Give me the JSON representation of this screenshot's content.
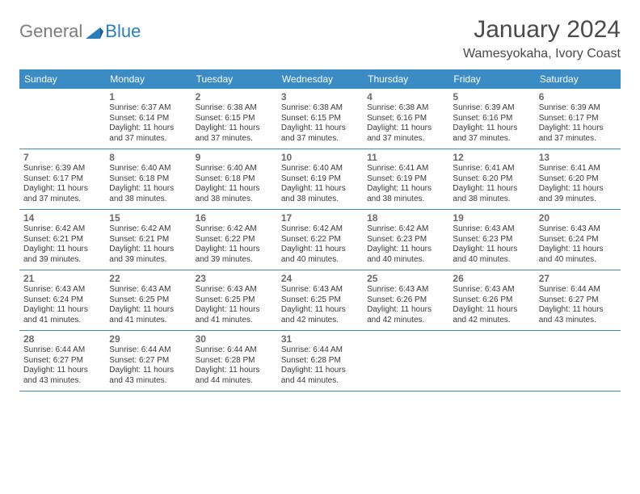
{
  "logo": {
    "text_general": "General",
    "text_blue": "Blue",
    "general_color": "#7c7c7c",
    "blue_color": "#2a7fba"
  },
  "title": "January 2024",
  "location": "Wamesyokaha, Ivory Coast",
  "colors": {
    "header_bg": "#3b8bc4",
    "header_text": "#ffffff",
    "border": "#3b8bc4",
    "daynum": "#6a6a6a",
    "info": "#3a3a3a",
    "title": "#4a4a4a"
  },
  "day_names": [
    "Sunday",
    "Monday",
    "Tuesday",
    "Wednesday",
    "Thursday",
    "Friday",
    "Saturday"
  ],
  "weeks": [
    [
      null,
      {
        "day": "1",
        "sunrise": "Sunrise: 6:37 AM",
        "sunset": "Sunset: 6:14 PM",
        "daylight": "Daylight: 11 hours and 37 minutes."
      },
      {
        "day": "2",
        "sunrise": "Sunrise: 6:38 AM",
        "sunset": "Sunset: 6:15 PM",
        "daylight": "Daylight: 11 hours and 37 minutes."
      },
      {
        "day": "3",
        "sunrise": "Sunrise: 6:38 AM",
        "sunset": "Sunset: 6:15 PM",
        "daylight": "Daylight: 11 hours and 37 minutes."
      },
      {
        "day": "4",
        "sunrise": "Sunrise: 6:38 AM",
        "sunset": "Sunset: 6:16 PM",
        "daylight": "Daylight: 11 hours and 37 minutes."
      },
      {
        "day": "5",
        "sunrise": "Sunrise: 6:39 AM",
        "sunset": "Sunset: 6:16 PM",
        "daylight": "Daylight: 11 hours and 37 minutes."
      },
      {
        "day": "6",
        "sunrise": "Sunrise: 6:39 AM",
        "sunset": "Sunset: 6:17 PM",
        "daylight": "Daylight: 11 hours and 37 minutes."
      }
    ],
    [
      {
        "day": "7",
        "sunrise": "Sunrise: 6:39 AM",
        "sunset": "Sunset: 6:17 PM",
        "daylight": "Daylight: 11 hours and 37 minutes."
      },
      {
        "day": "8",
        "sunrise": "Sunrise: 6:40 AM",
        "sunset": "Sunset: 6:18 PM",
        "daylight": "Daylight: 11 hours and 38 minutes."
      },
      {
        "day": "9",
        "sunrise": "Sunrise: 6:40 AM",
        "sunset": "Sunset: 6:18 PM",
        "daylight": "Daylight: 11 hours and 38 minutes."
      },
      {
        "day": "10",
        "sunrise": "Sunrise: 6:40 AM",
        "sunset": "Sunset: 6:19 PM",
        "daylight": "Daylight: 11 hours and 38 minutes."
      },
      {
        "day": "11",
        "sunrise": "Sunrise: 6:41 AM",
        "sunset": "Sunset: 6:19 PM",
        "daylight": "Daylight: 11 hours and 38 minutes."
      },
      {
        "day": "12",
        "sunrise": "Sunrise: 6:41 AM",
        "sunset": "Sunset: 6:20 PM",
        "daylight": "Daylight: 11 hours and 38 minutes."
      },
      {
        "day": "13",
        "sunrise": "Sunrise: 6:41 AM",
        "sunset": "Sunset: 6:20 PM",
        "daylight": "Daylight: 11 hours and 39 minutes."
      }
    ],
    [
      {
        "day": "14",
        "sunrise": "Sunrise: 6:42 AM",
        "sunset": "Sunset: 6:21 PM",
        "daylight": "Daylight: 11 hours and 39 minutes."
      },
      {
        "day": "15",
        "sunrise": "Sunrise: 6:42 AM",
        "sunset": "Sunset: 6:21 PM",
        "daylight": "Daylight: 11 hours and 39 minutes."
      },
      {
        "day": "16",
        "sunrise": "Sunrise: 6:42 AM",
        "sunset": "Sunset: 6:22 PM",
        "daylight": "Daylight: 11 hours and 39 minutes."
      },
      {
        "day": "17",
        "sunrise": "Sunrise: 6:42 AM",
        "sunset": "Sunset: 6:22 PM",
        "daylight": "Daylight: 11 hours and 40 minutes."
      },
      {
        "day": "18",
        "sunrise": "Sunrise: 6:42 AM",
        "sunset": "Sunset: 6:23 PM",
        "daylight": "Daylight: 11 hours and 40 minutes."
      },
      {
        "day": "19",
        "sunrise": "Sunrise: 6:43 AM",
        "sunset": "Sunset: 6:23 PM",
        "daylight": "Daylight: 11 hours and 40 minutes."
      },
      {
        "day": "20",
        "sunrise": "Sunrise: 6:43 AM",
        "sunset": "Sunset: 6:24 PM",
        "daylight": "Daylight: 11 hours and 40 minutes."
      }
    ],
    [
      {
        "day": "21",
        "sunrise": "Sunrise: 6:43 AM",
        "sunset": "Sunset: 6:24 PM",
        "daylight": "Daylight: 11 hours and 41 minutes."
      },
      {
        "day": "22",
        "sunrise": "Sunrise: 6:43 AM",
        "sunset": "Sunset: 6:25 PM",
        "daylight": "Daylight: 11 hours and 41 minutes."
      },
      {
        "day": "23",
        "sunrise": "Sunrise: 6:43 AM",
        "sunset": "Sunset: 6:25 PM",
        "daylight": "Daylight: 11 hours and 41 minutes."
      },
      {
        "day": "24",
        "sunrise": "Sunrise: 6:43 AM",
        "sunset": "Sunset: 6:25 PM",
        "daylight": "Daylight: 11 hours and 42 minutes."
      },
      {
        "day": "25",
        "sunrise": "Sunrise: 6:43 AM",
        "sunset": "Sunset: 6:26 PM",
        "daylight": "Daylight: 11 hours and 42 minutes."
      },
      {
        "day": "26",
        "sunrise": "Sunrise: 6:43 AM",
        "sunset": "Sunset: 6:26 PM",
        "daylight": "Daylight: 11 hours and 42 minutes."
      },
      {
        "day": "27",
        "sunrise": "Sunrise: 6:44 AM",
        "sunset": "Sunset: 6:27 PM",
        "daylight": "Daylight: 11 hours and 43 minutes."
      }
    ],
    [
      {
        "day": "28",
        "sunrise": "Sunrise: 6:44 AM",
        "sunset": "Sunset: 6:27 PM",
        "daylight": "Daylight: 11 hours and 43 minutes."
      },
      {
        "day": "29",
        "sunrise": "Sunrise: 6:44 AM",
        "sunset": "Sunset: 6:27 PM",
        "daylight": "Daylight: 11 hours and 43 minutes."
      },
      {
        "day": "30",
        "sunrise": "Sunrise: 6:44 AM",
        "sunset": "Sunset: 6:28 PM",
        "daylight": "Daylight: 11 hours and 44 minutes."
      },
      {
        "day": "31",
        "sunrise": "Sunrise: 6:44 AM",
        "sunset": "Sunset: 6:28 PM",
        "daylight": "Daylight: 11 hours and 44 minutes."
      },
      null,
      null,
      null
    ]
  ]
}
